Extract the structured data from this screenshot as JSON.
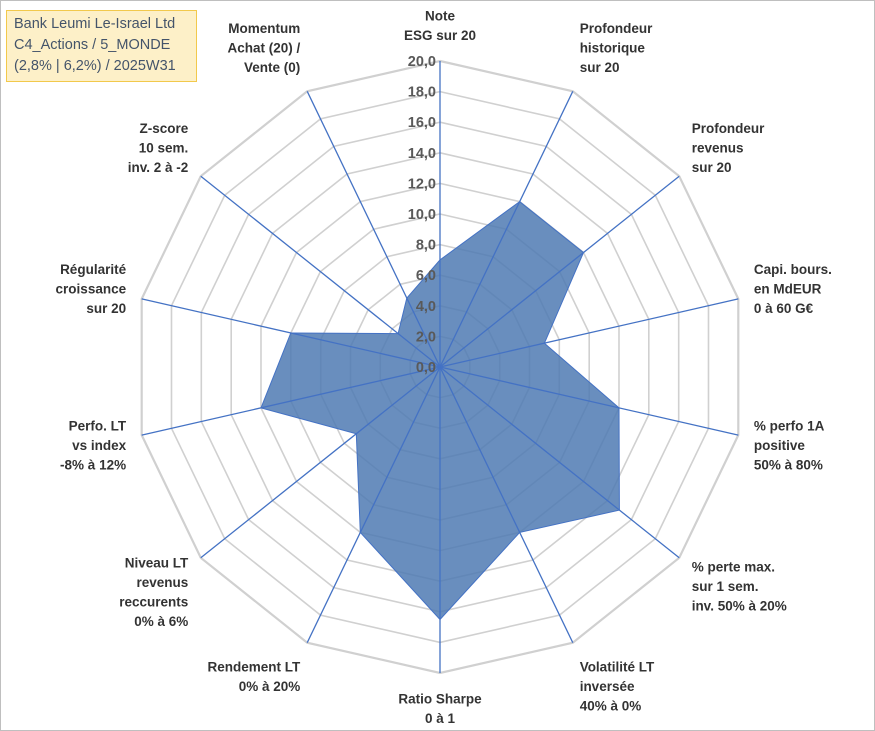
{
  "title_box": {
    "line1": "Bank Leumi Le-Israel Ltd",
    "line2": "C4_Actions / 5_MONDE",
    "line3": "(2,8% | 6,2%) / 2025W31"
  },
  "colors": {
    "series_fill": "#4f7ab3",
    "series_line": "#4472c4",
    "axis_line": "#4472c4",
    "grid": "#d0d0d0",
    "title_bg": "#fdf0c8",
    "title_border": "#f2c94c"
  },
  "chart_data": {
    "type": "radar",
    "r_min": 0,
    "r_max": 20,
    "r_step": 2,
    "tick_labels": [
      "0,0",
      "2,0",
      "4,0",
      "6,0",
      "8,0",
      "10,0",
      "12,0",
      "14,0",
      "16,0",
      "18,0",
      "20,0"
    ],
    "axes": [
      {
        "label": [
          "Note",
          "ESG sur 20"
        ],
        "value": 7.0
      },
      {
        "label": [
          "Profondeur",
          "historique",
          "sur 20"
        ],
        "value": 12.0
      },
      {
        "label": [
          "Profondeur",
          "revenus",
          "sur 20"
        ],
        "value": 12.0
      },
      {
        "label": [
          "Capi. bours.",
          "en MdEUR",
          "0 à 60 G€"
        ],
        "value": 7.0
      },
      {
        "label": [
          "% perfo 1A",
          "positive",
          "50% à 80%"
        ],
        "value": 12.0
      },
      {
        "label": [
          "% perte max.",
          "sur 1 sem.",
          "inv. 50% à 20%"
        ],
        "value": 15.0
      },
      {
        "label": [
          "Volatilité LT",
          "inversée",
          "40% à 0%"
        ],
        "value": 12.0
      },
      {
        "label": [
          "Ratio Sharpe",
          "0 à 1"
        ],
        "value": 16.5
      },
      {
        "label": [
          "Rendement LT",
          "0% à 20%"
        ],
        "value": 12.0
      },
      {
        "label": [
          "Niveau LT",
          "revenus",
          "reccurents",
          "0% à 6%"
        ],
        "value": 7.0
      },
      {
        "label": [
          "Perfo. LT",
          "vs index",
          "-8% à 12%"
        ],
        "value": 12.0
      },
      {
        "label": [
          "Régularité",
          "croissance",
          "sur 20"
        ],
        "value": 10.0
      },
      {
        "label": [
          "Z-score",
          "10 sem.",
          "inv. 2 à -2"
        ],
        "value": 3.5
      },
      {
        "label": [
          "Momentum",
          "Achat (20) /",
          "Vente (0)"
        ],
        "value": 5.0
      }
    ]
  }
}
